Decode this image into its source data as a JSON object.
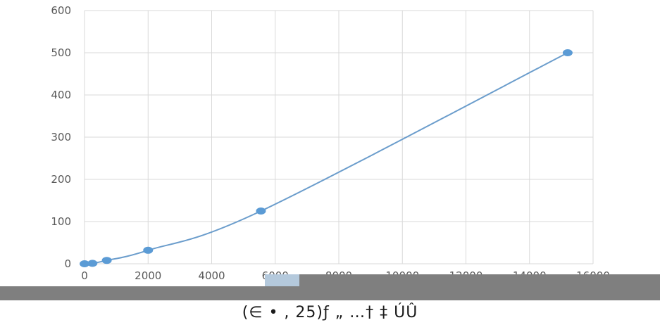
{
  "chart_data": {
    "type": "scatter",
    "title": "",
    "xlabel": "",
    "ylabel": "",
    "xlim": [
      0,
      16000
    ],
    "ylim": [
      0,
      600
    ],
    "x_ticks": [
      0,
      2000,
      4000,
      6000,
      8000,
      10000,
      12000,
      14000,
      16000
    ],
    "y_ticks": [
      0,
      100,
      200,
      300,
      400,
      500,
      600
    ],
    "grid": true,
    "line_color": "#6b9dcc",
    "marker_color": "#5b9bd5",
    "smooth_line": true,
    "series": [
      {
        "x": [
          0,
          250,
          700,
          2000,
          5550,
          15200
        ],
        "y": [
          0,
          1,
          8,
          32,
          125,
          500
        ]
      }
    ]
  },
  "caption": {
    "text": "(∈ •  ,  25)ƒ „  …† ‡ ÚÛ"
  },
  "colors": {
    "grid": "#d9d9d9",
    "axis_text": "#595959",
    "overlay_dark": "#7f7f7f",
    "overlay_patch": "#b4c9dc"
  }
}
